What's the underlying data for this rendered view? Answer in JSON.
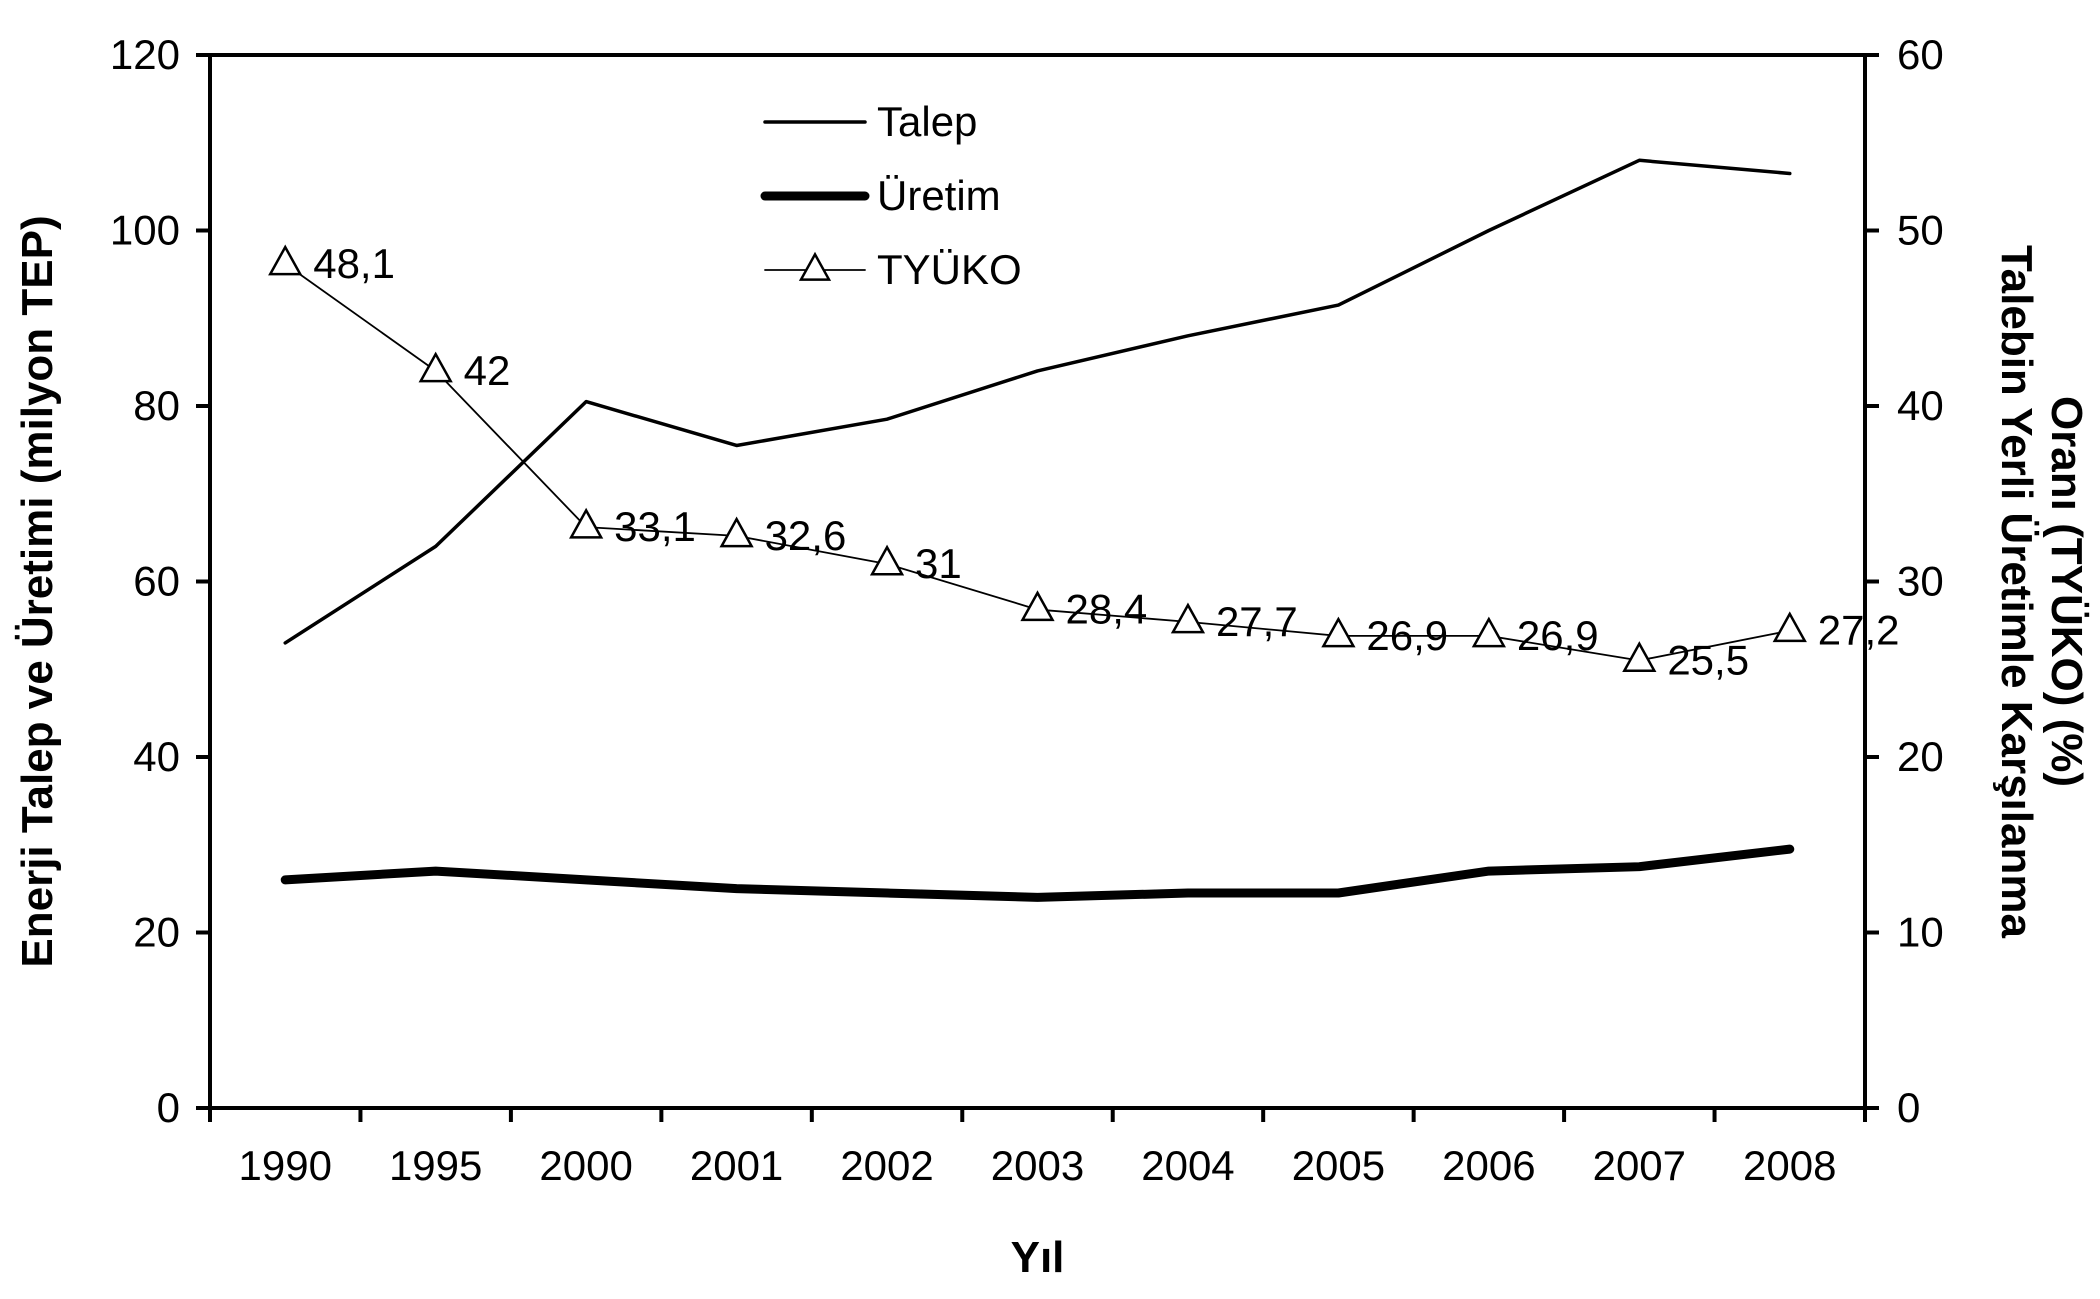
{
  "chart_data": {
    "type": "line",
    "categories": [
      "1990",
      "1995",
      "2000",
      "2001",
      "2002",
      "2003",
      "2004",
      "2005",
      "2006",
      "2007",
      "2008"
    ],
    "series": [
      {
        "name": "Talep",
        "axis": "left",
        "values": [
          53,
          64,
          80.5,
          75.5,
          78.5,
          84,
          88,
          91.5,
          100,
          108,
          106.5
        ]
      },
      {
        "name": "Üretim",
        "axis": "left",
        "values": [
          26,
          27,
          26,
          25,
          24.5,
          24,
          24.5,
          24.5,
          27,
          27.5,
          29.5
        ]
      },
      {
        "name": "TYÜKO",
        "axis": "right",
        "values": [
          48.1,
          42,
          33.1,
          32.6,
          31,
          28.4,
          27.7,
          26.9,
          26.9,
          25.5,
          27.2
        ],
        "data_labels": [
          "48,1",
          "42",
          "33,1",
          "32,6",
          "31",
          "28,4",
          "27,7",
          "26,9",
          "26,9",
          "25,5",
          "27,2"
        ]
      }
    ],
    "xlabel": "Yıl",
    "ylabel": "Enerji Talep ve Üretimi (milyon TEP)",
    "y2label": [
      "Talebin Yerli Üretimle Karşılanma",
      "Oranı (TYÜKO) (%)"
    ],
    "ylim": [
      0,
      120
    ],
    "y2lim": [
      0,
      60
    ],
    "yticks": [
      "0",
      "20",
      "40",
      "60",
      "80",
      "100",
      "120"
    ],
    "y2ticks": [
      "0",
      "10",
      "20",
      "30",
      "40",
      "50",
      "60"
    ],
    "grid": false,
    "legend": "top-center",
    "legend_entries": [
      "Talep",
      "Üretim",
      "TYÜKO"
    ],
    "colors": {
      "line": "#000000",
      "background": "#ffffff"
    }
  }
}
